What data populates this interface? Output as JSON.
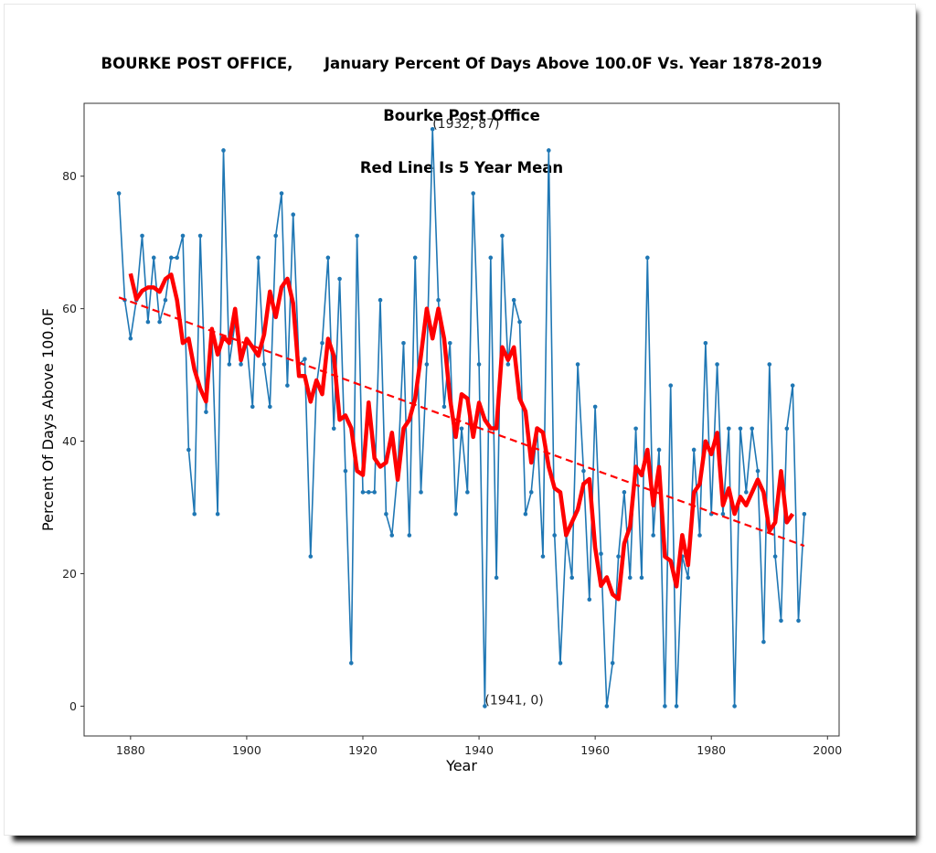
{
  "chart_data": {
    "type": "line",
    "title_lines": [
      "BOURKE POST OFFICE,      January Percent Of Days Above 100.0F Vs. Year 1878-2019",
      "Bourke Post Office",
      "Red Line Is 5 Year Mean"
    ],
    "xlabel": "Year",
    "ylabel": "Percent Of Days Above 100.0F",
    "xlim": [
      1872,
      2002
    ],
    "ylim": [
      -4.5,
      91
    ],
    "xticks": [
      1880,
      1900,
      1920,
      1940,
      1960,
      1980,
      2000
    ],
    "yticks": [
      0,
      20,
      40,
      60,
      80
    ],
    "grid": false,
    "x": [
      1878,
      1879,
      1880,
      1881,
      1882,
      1883,
      1884,
      1885,
      1886,
      1887,
      1888,
      1889,
      1890,
      1891,
      1892,
      1893,
      1894,
      1895,
      1896,
      1897,
      1898,
      1899,
      1900,
      1901,
      1902,
      1903,
      1904,
      1905,
      1906,
      1907,
      1908,
      1909,
      1910,
      1911,
      1912,
      1913,
      1914,
      1915,
      1916,
      1917,
      1918,
      1919,
      1920,
      1921,
      1922,
      1923,
      1924,
      1925,
      1926,
      1927,
      1928,
      1929,
      1930,
      1931,
      1932,
      1933,
      1934,
      1935,
      1936,
      1937,
      1938,
      1939,
      1940,
      1941,
      1942,
      1943,
      1944,
      1945,
      1946,
      1947,
      1948,
      1949,
      1950,
      1951,
      1952,
      1953,
      1954,
      1955,
      1956,
      1957,
      1958,
      1959,
      1960,
      1961,
      1962,
      1963,
      1964,
      1965,
      1966,
      1967,
      1968,
      1969,
      1970,
      1971,
      1972,
      1973,
      1974,
      1975,
      1976,
      1977,
      1978,
      1979,
      1980,
      1981,
      1982,
      1983,
      1984,
      1985,
      1986,
      1987,
      1988,
      1989,
      1990,
      1991,
      1992,
      1993,
      1994,
      1995,
      1996
    ],
    "series": [
      {
        "name": "January Percent Of Days Above 100.0F",
        "color": "#1f77b4",
        "values": [
          77.4,
          61.3,
          55.5,
          61.3,
          71.0,
          58.0,
          67.7,
          58.0,
          61.3,
          67.7,
          67.7,
          71.0,
          38.7,
          29.0,
          71.0,
          44.4,
          56.5,
          29.0,
          83.9,
          51.6,
          58.0,
          51.6,
          54.8,
          45.2,
          67.7,
          51.6,
          45.2,
          71.0,
          77.4,
          48.4,
          74.2,
          51.6,
          52.4,
          22.6,
          48.4,
          54.8,
          67.7,
          41.9,
          64.5,
          35.5,
          6.5,
          71.0,
          32.3,
          32.3,
          32.3,
          61.3,
          29.0,
          25.8,
          35.5,
          54.8,
          25.8,
          67.7,
          32.3,
          51.6,
          87.1,
          61.3,
          45.2,
          54.8,
          29.0,
          41.9,
          32.3,
          77.4,
          51.6,
          0.0,
          67.7,
          19.4,
          71.0,
          51.6,
          61.3,
          58.0,
          29.0,
          32.3,
          41.9,
          22.6,
          83.9,
          25.8,
          6.5,
          25.8,
          19.4,
          51.6,
          35.5,
          16.1,
          45.2,
          23.0,
          0.0,
          6.5,
          22.6,
          32.3,
          19.4,
          41.9,
          19.4,
          67.7,
          25.8,
          38.7,
          0.0,
          48.4,
          0.0,
          22.6,
          19.4,
          38.7,
          25.8,
          54.8,
          29.0,
          51.6,
          29.0,
          41.9,
          0.0,
          41.9,
          32.3,
          41.9,
          35.5,
          9.7,
          51.6,
          22.6,
          12.9,
          41.9,
          48.4,
          12.9,
          29.0
        ]
      },
      {
        "name": "5 Year Mean",
        "color": "#ff0000",
        "window": 5,
        "x_range": [
          1880,
          1994
        ]
      },
      {
        "name": "Linear Trend",
        "color": "#ff0000",
        "style": "dashed",
        "x": [
          1878,
          1996
        ],
        "values": [
          61.7,
          24.2
        ]
      }
    ],
    "annotations": [
      {
        "text": "(1932, 87)",
        "x": 1932,
        "y": 87
      },
      {
        "text": "(1941, 0)",
        "x": 1941,
        "y": 0
      }
    ]
  }
}
